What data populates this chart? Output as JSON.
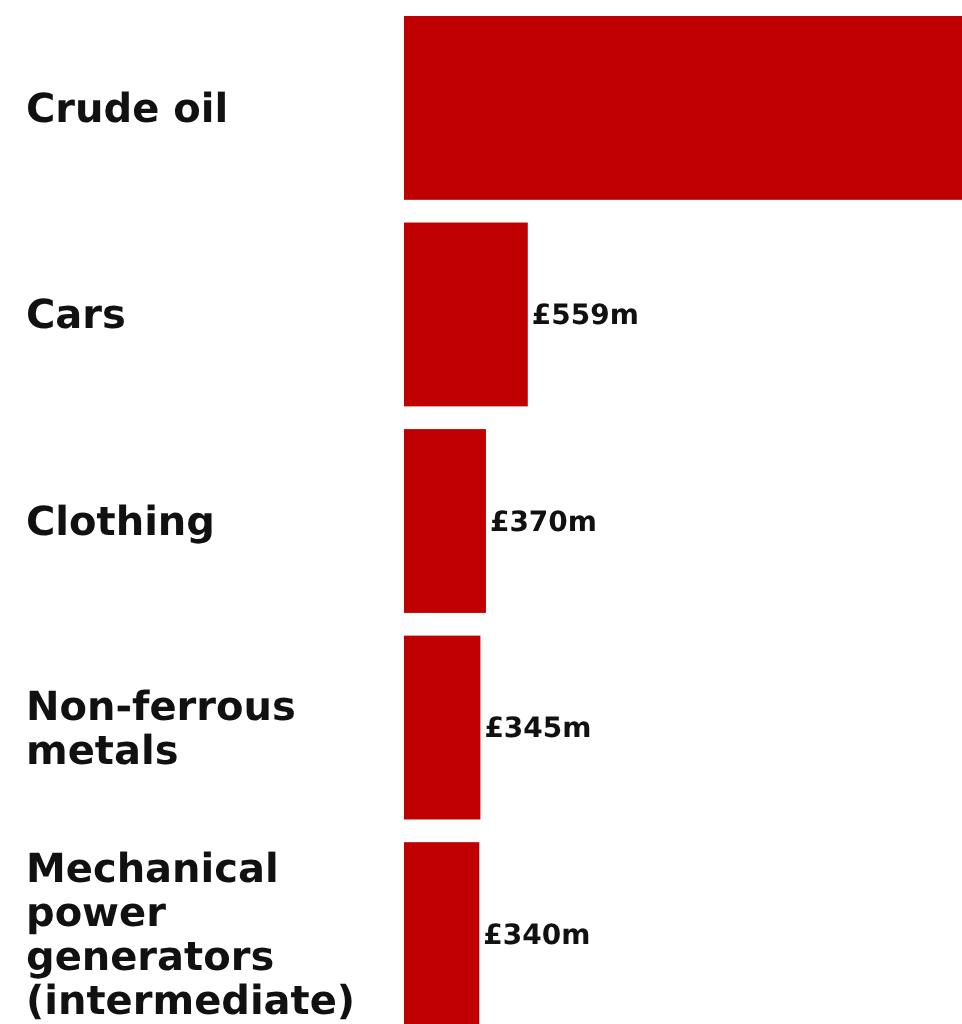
{
  "chart_data": {
    "type": "bar",
    "orientation": "horizontal",
    "categories": [
      "Crude oil",
      "Cars",
      "Clothing",
      "Non-ferrous metals",
      "Mechanical power generators (intermediate)"
    ],
    "values": [
      2520,
      559,
      370,
      345,
      340
    ],
    "value_labels": [
      null,
      "£559m",
      "£370m",
      "£345m",
      "£340m"
    ],
    "color": "#c00000"
  }
}
